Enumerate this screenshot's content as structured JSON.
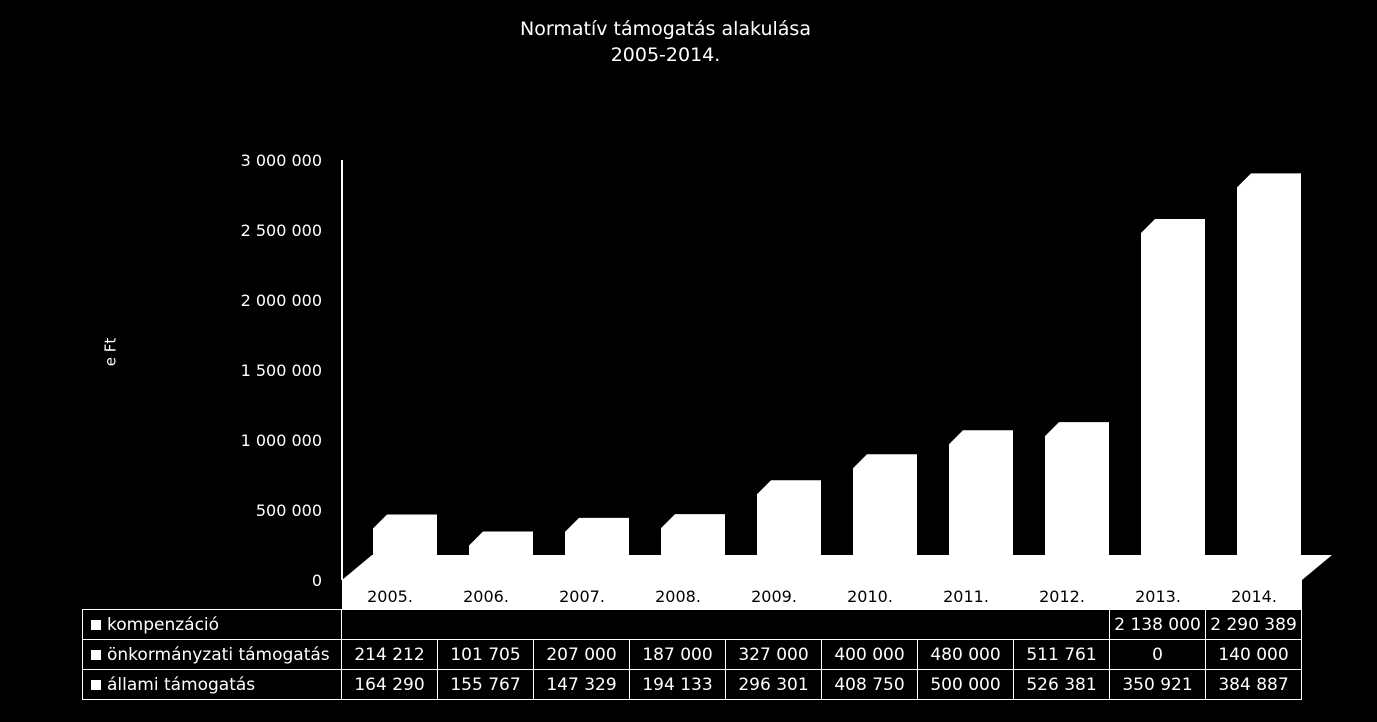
{
  "chart_data": {
    "type": "bar",
    "stacked": true,
    "three_d": true,
    "title_lines": [
      "Normatív támogatás alakulása",
      "2005-2014."
    ],
    "ylabel": "e Ft",
    "xlabel": "",
    "ylim": [
      0,
      3000000
    ],
    "yticks": [
      0,
      500000,
      1000000,
      1500000,
      2000000,
      2500000,
      3000000
    ],
    "ytick_labels": [
      "0",
      "500 000",
      "1 000 000",
      "1 500 000",
      "2 000 000",
      "2 500 000",
      "3 000 000"
    ],
    "categories": [
      "2005.",
      "2006.",
      "2007.",
      "2008.",
      "2009.",
      "2010.",
      "2011.",
      "2012.",
      "2013.",
      "2014."
    ],
    "series": [
      {
        "name": "kompenzáció",
        "values": [
          null,
          null,
          null,
          null,
          null,
          null,
          null,
          null,
          2138000,
          2290389
        ],
        "labels": [
          "",
          "",
          "",
          "",
          "",
          "",
          "",
          "",
          "2 138 000",
          "2 290 389"
        ]
      },
      {
        "name": "önkormányzati támogatás",
        "values": [
          214212,
          101705,
          207000,
          187000,
          327000,
          400000,
          480000,
          511761,
          0,
          140000
        ],
        "labels": [
          "214 212",
          "101 705",
          "207 000",
          "187 000",
          "327 000",
          "400 000",
          "480 000",
          "511 761",
          "0",
          "140 000"
        ]
      },
      {
        "name": "állami támogatás",
        "values": [
          164290,
          155767,
          147329,
          194133,
          296301,
          408750,
          500000,
          526381,
          350921,
          384887
        ],
        "labels": [
          "164 290",
          "155 767",
          "147 329",
          "194 133",
          "296 301",
          "408 750",
          "500 000",
          "526 381",
          "350 921",
          "384 887"
        ]
      }
    ],
    "grid": false,
    "legend": "data-table"
  }
}
